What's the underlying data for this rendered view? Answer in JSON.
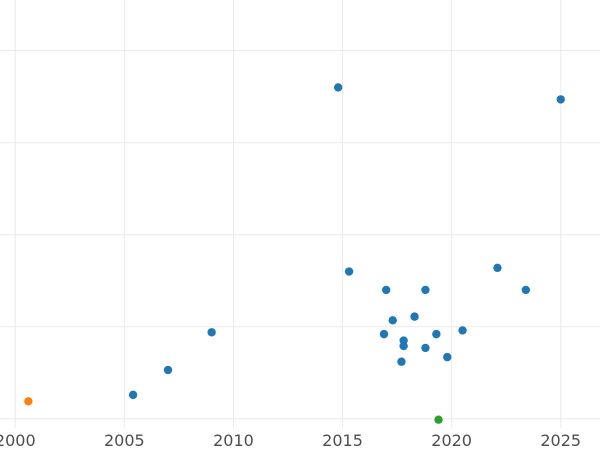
{
  "chart_data": {
    "type": "scatter",
    "title": "",
    "xlabel": "",
    "ylabel": "",
    "xlim": [
      1999.3,
      2026.8
    ],
    "ylim": [
      -0.1,
      4.55
    ],
    "x_ticks": [
      2000,
      2005,
      2010,
      2015,
      2020,
      2025
    ],
    "x_tick_labels": [
      "2000",
      "2005",
      "2010",
      "2015",
      "2020",
      "2025"
    ],
    "y_gridlines": [
      0.0,
      1.0,
      2.0,
      3.0,
      4.0
    ],
    "grid": true,
    "legend": "none",
    "series": [
      {
        "color": "#1f77b4",
        "points": [
          {
            "x": 2005.4,
            "y": 0.26
          },
          {
            "x": 2007.0,
            "y": 0.53
          },
          {
            "x": 2009.0,
            "y": 0.94
          },
          {
            "x": 2014.8,
            "y": 3.6
          },
          {
            "x": 2015.3,
            "y": 1.6
          },
          {
            "x": 2016.9,
            "y": 0.92
          },
          {
            "x": 2017.0,
            "y": 1.4
          },
          {
            "x": 2017.3,
            "y": 1.07
          },
          {
            "x": 2017.7,
            "y": 0.62
          },
          {
            "x": 2017.8,
            "y": 0.85
          },
          {
            "x": 2017.8,
            "y": 0.79
          },
          {
            "x": 2018.3,
            "y": 1.11
          },
          {
            "x": 2018.8,
            "y": 0.77
          },
          {
            "x": 2018.8,
            "y": 1.4
          },
          {
            "x": 2019.3,
            "y": 0.92
          },
          {
            "x": 2019.8,
            "y": 0.67
          },
          {
            "x": 2020.5,
            "y": 0.96
          },
          {
            "x": 2022.1,
            "y": 1.64
          },
          {
            "x": 2023.4,
            "y": 1.4
          },
          {
            "x": 2025.0,
            "y": 3.47
          }
        ]
      },
      {
        "color": "#ff7f0e",
        "points": [
          {
            "x": 2000.6,
            "y": 0.19
          }
        ]
      },
      {
        "color": "#2ca02c",
        "points": [
          {
            "x": 2019.4,
            "y": -0.01
          }
        ]
      }
    ]
  }
}
